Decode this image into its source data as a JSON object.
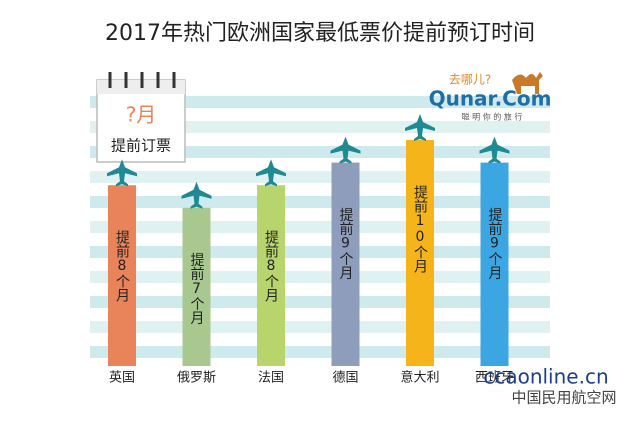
{
  "chart_data": {
    "type": "bar",
    "title": "2017年热门欧洲国家最低票价提前预订时间",
    "categories": [
      "英国",
      "俄罗斯",
      "法国",
      "德国",
      "意大利",
      "西班牙"
    ],
    "values": [
      8,
      7,
      8,
      9,
      10,
      9
    ],
    "value_labels": [
      "提前8个月",
      "提前7个月",
      "提前8个月",
      "提前9个月",
      "提前10个月",
      "提前9个月"
    ],
    "colors": [
      "#e9835a",
      "#a8c890",
      "#b8d46c",
      "#8f9dbd",
      "#f5b51a",
      "#3ba6e2"
    ],
    "calendar": {
      "month": "?月",
      "caption": "提前订票"
    },
    "logo": {
      "slogan": "去哪儿?",
      "brand": "Qunar.Com",
      "tagline": "聪 明 你 的 旅 行"
    },
    "watermark": {
      "site": "ccaonline.cn",
      "name": "中国民用航空网"
    }
  }
}
